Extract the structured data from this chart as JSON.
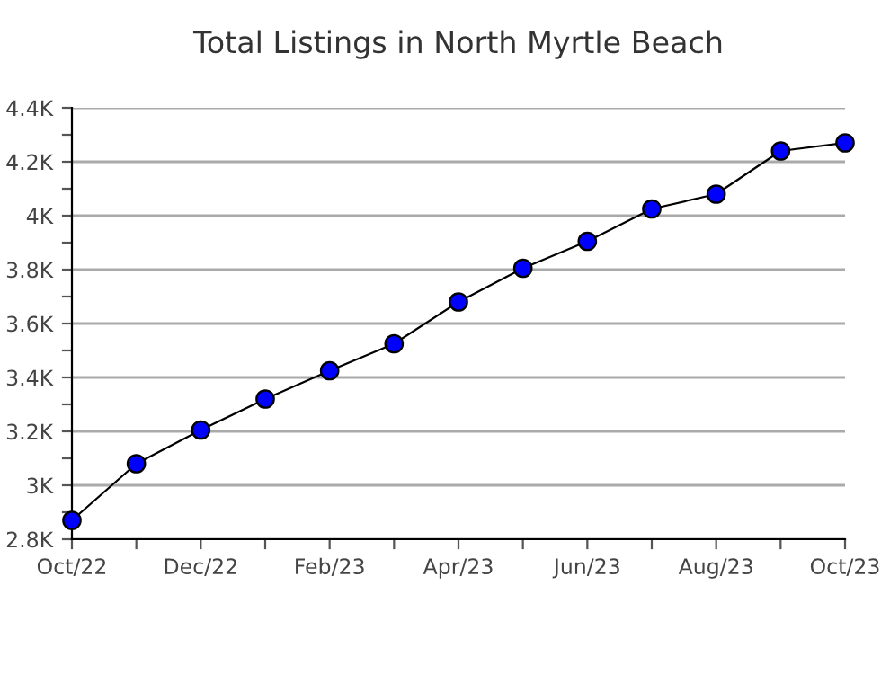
{
  "chart_data": {
    "type": "line",
    "title": "Total Listings in North Myrtle Beach",
    "categories": [
      "Oct/22",
      null,
      "Dec/22",
      null,
      "Feb/23",
      null,
      "Apr/23",
      null,
      "Jun/23",
      null,
      "Aug/23",
      null,
      "Oct/23"
    ],
    "series": [
      {
        "color": "#0000ff",
        "values": [
          2870,
          3080,
          3205,
          3320,
          3425,
          3525,
          3680,
          3805,
          3905,
          4025,
          4080,
          4240,
          4270
        ]
      }
    ],
    "ylim": [
      2800,
      4400
    ],
    "yticks": [
      {
        "value": 2800,
        "label": "2.8K"
      },
      {
        "value": 2900,
        "label": null
      },
      {
        "value": 3000,
        "label": "3K"
      },
      {
        "value": 3100,
        "label": null
      },
      {
        "value": 3200,
        "label": "3.2K"
      },
      {
        "value": 3300,
        "label": null
      },
      {
        "value": 3400,
        "label": "3.4K"
      },
      {
        "value": 3500,
        "label": null
      },
      {
        "value": 3600,
        "label": "3.6K"
      },
      {
        "value": 3700,
        "label": null
      },
      {
        "value": 3800,
        "label": "3.8K"
      },
      {
        "value": 3900,
        "label": null
      },
      {
        "value": 4000,
        "label": "4K"
      },
      {
        "value": 4100,
        "label": null
      },
      {
        "value": 4200,
        "label": "4.2K"
      },
      {
        "value": 4300,
        "label": null
      },
      {
        "value": 4400,
        "label": "4.4K"
      }
    ],
    "grid": "y",
    "marker": "circle",
    "line_style": "solid"
  }
}
